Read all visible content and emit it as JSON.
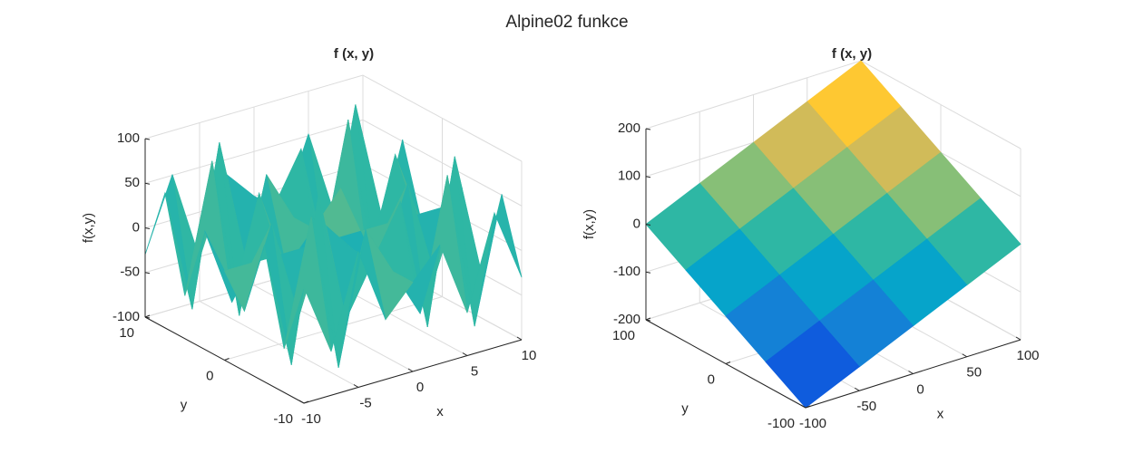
{
  "title": "Alpine02 funkce",
  "chart_data": [
    {
      "type": "surface",
      "title": "f (x, y)",
      "xlabel": "x",
      "ylabel": "y",
      "zlabel": "f(x,y)",
      "x": [
        -10,
        -7.5,
        -5,
        -2.5,
        0,
        2.5,
        5,
        7.5,
        10
      ],
      "y": [
        -10,
        -7.5,
        -5,
        -2.5,
        0,
        2.5,
        5,
        7.5,
        10
      ],
      "z": [
        [
          30,
          -51,
          52,
          -33,
          0,
          33,
          -52,
          51,
          -30
        ],
        [
          -51,
          88,
          -90,
          56,
          0,
          -56,
          90,
          -88,
          51
        ],
        [
          52,
          -90,
          92,
          -57,
          0,
          57,
          -92,
          90,
          -52
        ],
        [
          -33,
          56,
          -57,
          36,
          0,
          -36,
          57,
          -56,
          33
        ],
        [
          0,
          0,
          0,
          0,
          0,
          0,
          0,
          0,
          0
        ],
        [
          33,
          -56,
          57,
          -36,
          0,
          36,
          -57,
          56,
          -33
        ],
        [
          -52,
          90,
          -92,
          57,
          0,
          -57,
          92,
          -90,
          52
        ],
        [
          51,
          -88,
          90,
          -56,
          0,
          56,
          -90,
          88,
          -51
        ],
        [
          -30,
          51,
          -52,
          33,
          0,
          -33,
          52,
          -51,
          30
        ]
      ],
      "xlim": [
        -10,
        10
      ],
      "ylim": [
        -10,
        10
      ],
      "zlim": [
        -100,
        100
      ],
      "xticks": [
        -10,
        -5,
        0,
        5,
        10
      ],
      "yticks": [
        -10,
        0,
        10
      ],
      "zticks": [
        -100,
        -50,
        0,
        50,
        100
      ],
      "grid": true,
      "colormap": [
        "#352a87",
        "#0f5cdd",
        "#1481d6",
        "#06a4ca",
        "#2eb7a4",
        "#87bf77",
        "#d1bb59",
        "#fec832",
        "#f9fb0e"
      ]
    },
    {
      "type": "surface",
      "title": "f (x, y)",
      "xlabel": "x",
      "ylabel": "y",
      "zlabel": "f(x,y)",
      "x": [
        -100,
        -50,
        0,
        50,
        100
      ],
      "y": [
        -100,
        -50,
        0,
        50,
        100
      ],
      "z": [
        [
          -200,
          -150,
          -100,
          -50,
          0
        ],
        [
          -150,
          -100,
          -50,
          0,
          50
        ],
        [
          -100,
          -50,
          0,
          50,
          100
        ],
        [
          -50,
          0,
          50,
          100,
          150
        ],
        [
          0,
          50,
          100,
          150,
          200
        ]
      ],
      "xlim": [
        -100,
        100
      ],
      "ylim": [
        -100,
        100
      ],
      "zlim": [
        -200,
        200
      ],
      "xticks": [
        -100,
        -50,
        0,
        50,
        100
      ],
      "yticks": [
        -100,
        0,
        100
      ],
      "zticks": [
        -200,
        -100,
        0,
        100,
        200
      ],
      "grid": true,
      "colormap": [
        "#352a87",
        "#0f5cdd",
        "#1481d6",
        "#06a4ca",
        "#2eb7a4",
        "#87bf77",
        "#d1bb59",
        "#fec832",
        "#f9fb0e"
      ]
    }
  ]
}
